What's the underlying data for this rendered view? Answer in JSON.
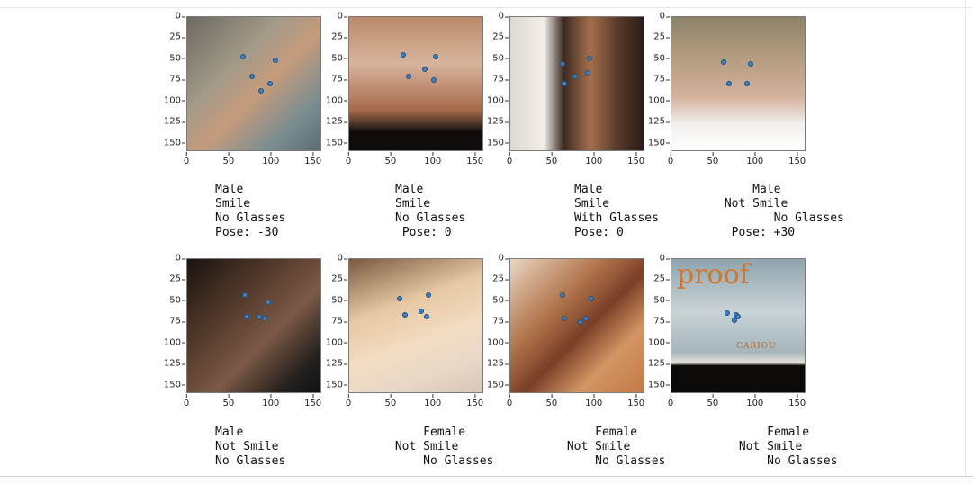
{
  "axis": {
    "y_ticks": [
      "0",
      "25",
      "50",
      "75",
      "100",
      "125",
      "150"
    ],
    "x_ticks": [
      "0",
      "50",
      "100",
      "150"
    ]
  },
  "faces": [
    {
      "caption": [
        "Male",
        "Smile",
        "No Glasses",
        "Pose: -30"
      ]
    },
    {
      "caption": [
        "Male",
        "Smile",
        "No Glasses",
        " Pose: 0"
      ]
    },
    {
      "caption": [
        "Male",
        "Smile",
        "With Glasses",
        "Pose: 0"
      ]
    },
    {
      "caption": [
        "     Male",
        " Not Smile",
        "        No Glasses",
        "  Pose: +30"
      ]
    },
    {
      "caption": [
        "Male",
        "Not Smile",
        "No Glasses"
      ]
    },
    {
      "caption": [
        "     Female",
        " Not Smile",
        "     No Glasses"
      ]
    },
    {
      "caption": [
        "     Female",
        " Not Smile",
        "     No Glasses"
      ]
    },
    {
      "caption": [
        "     Female",
        " Not Smile",
        "     No Glasses"
      ]
    }
  ],
  "watermark": {
    "text": "proof",
    "sub": "CARIOU"
  },
  "colors": {
    "landmark": "#3c7fc4"
  }
}
